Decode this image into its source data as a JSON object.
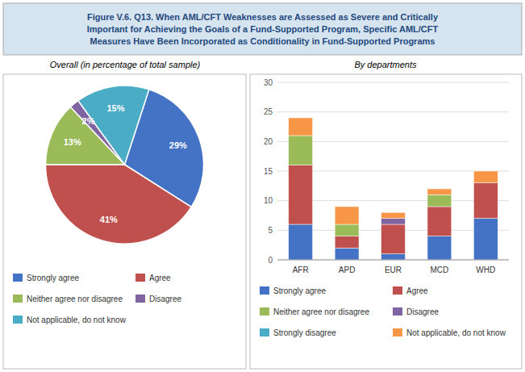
{
  "chart_data": [
    {
      "type": "pie",
      "title": "Figure V.6. Q13. When AML/CFT Weaknesses are Assessed as Severe and Critically\nImportant for Achieving the Goals of a Fund-Supported Program, Specific AML/CFT\nMeasures Have Been Incorporated as Conditionality in Fund-Supported Programs",
      "subtitle": "Overall (in percentage of total sample)",
      "categories": [
        "Strongly agree",
        "Agree",
        "Neither agree nor disagree",
        "Disagree",
        "Not applicable, do not know"
      ],
      "values": [
        29,
        41,
        13,
        2,
        15
      ],
      "value_labels": [
        "29%",
        "41%",
        "13%",
        "2%",
        "15%"
      ],
      "colors": [
        "#4472C4",
        "#C0504D",
        "#9BBB59",
        "#8064A2",
        "#4BACC6"
      ],
      "data_labels": true
    },
    {
      "type": "bar",
      "subtitle": "By departments",
      "categories": [
        "AFR",
        "APD",
        "EUR",
        "MCD",
        "WHD"
      ],
      "series": [
        {
          "name": "Strongly agree",
          "color": "#4472C4",
          "values": [
            6,
            2,
            1,
            4,
            7
          ]
        },
        {
          "name": "Agree",
          "color": "#C0504D",
          "values": [
            10,
            2,
            5,
            5,
            6
          ]
        },
        {
          "name": "Neither agree nor disagree",
          "color": "#9BBB59",
          "values": [
            5,
            2,
            0,
            2,
            0
          ]
        },
        {
          "name": "Disagree",
          "color": "#8064A2",
          "values": [
            0,
            0,
            1,
            0,
            0
          ]
        },
        {
          "name": "Strongly disagree",
          "color": "#4BACC6",
          "values": [
            0,
            0,
            0,
            0,
            0
          ]
        },
        {
          "name": "Not applicable, do not know",
          "color": "#F79646",
          "values": [
            3,
            3,
            1,
            1,
            2
          ]
        }
      ],
      "stacked": true,
      "ylim": [
        0,
        30
      ],
      "yticks": [
        0,
        5,
        10,
        15,
        20,
        25,
        30
      ],
      "grid": true
    }
  ]
}
